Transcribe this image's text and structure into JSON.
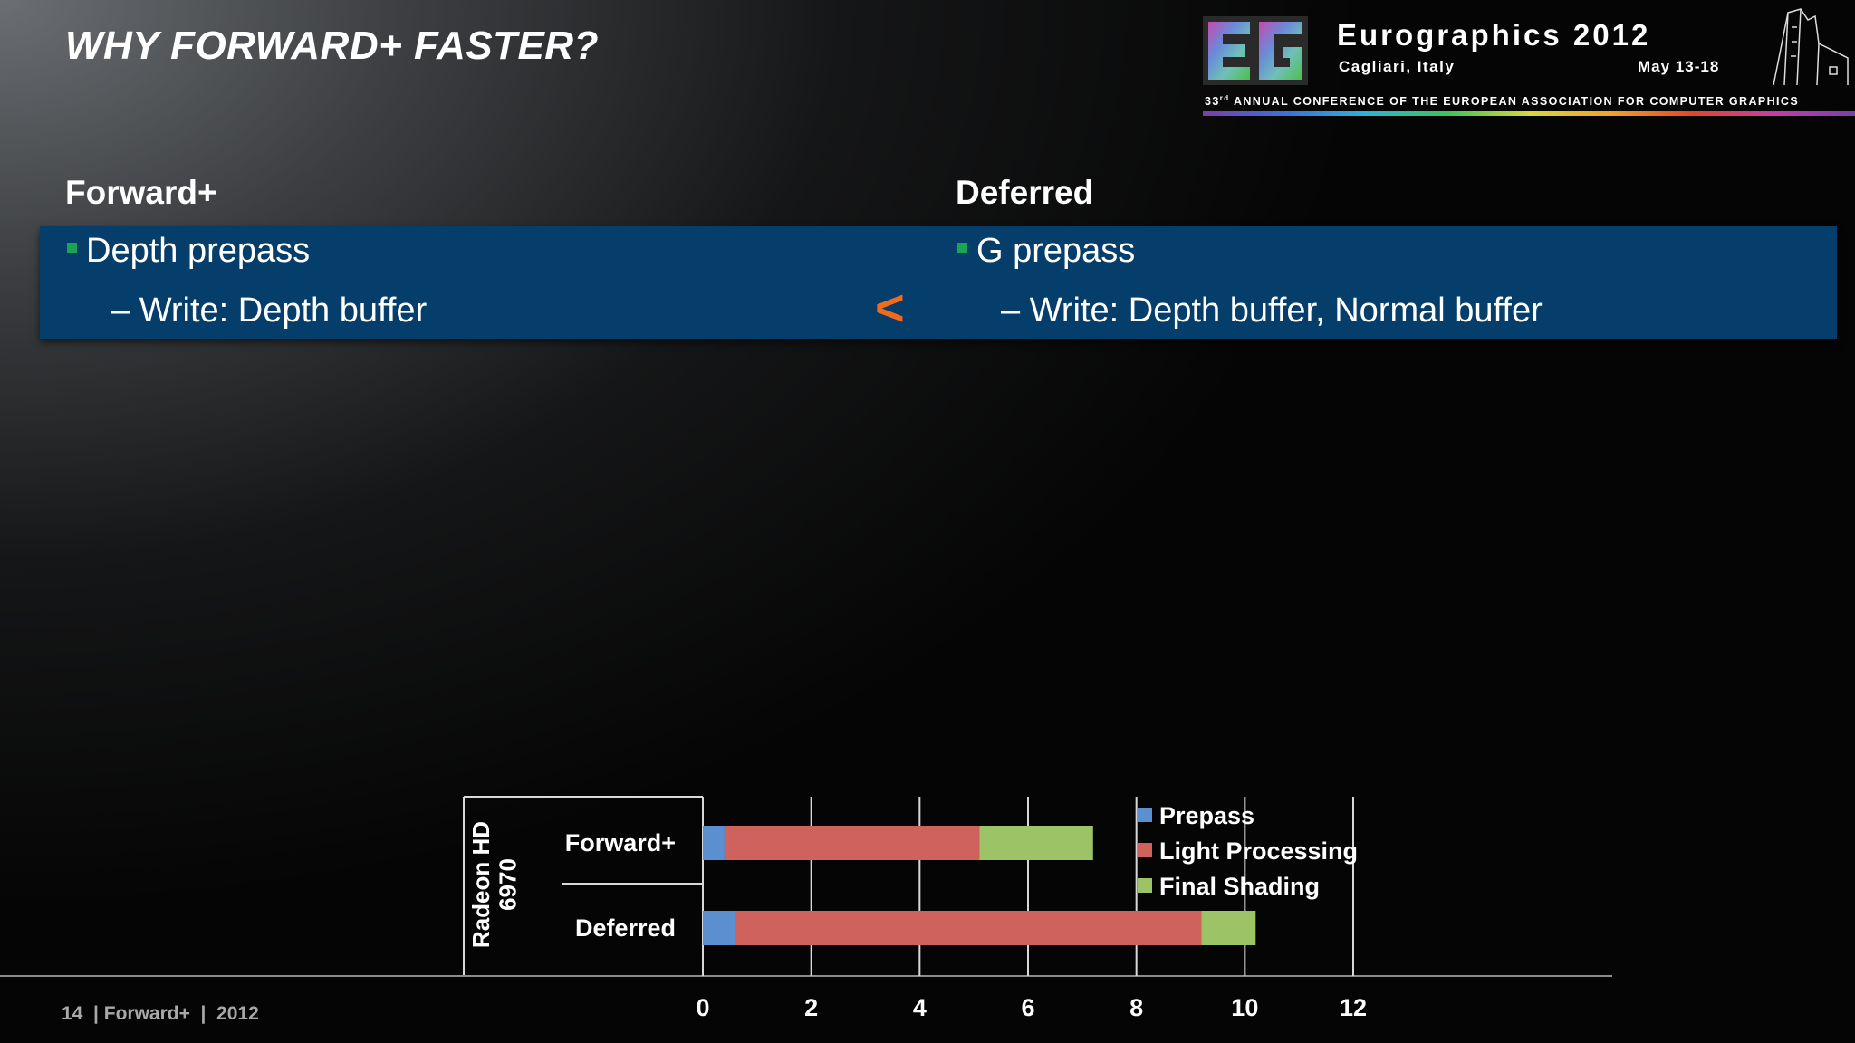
{
  "slide": {
    "title": "WHY FORWARD+ FASTER?",
    "footer": "14  | Forward+  |  2012"
  },
  "logo": {
    "name": "Eurographics 2012",
    "city": "Cagliari, Italy",
    "dates": "May 13-18",
    "ordinal": "33",
    "ordinal_suffix": "rd",
    "conference": "ANNUAL CONFERENCE OF THE EUROPEAN ASSOCIATION FOR COMPUTER GRAPHICS"
  },
  "left": {
    "heading": "Forward+",
    "bullet": "Depth prepass",
    "sub": "– Write: Depth buffer"
  },
  "right": {
    "heading": "Deferred",
    "bullet": "G prepass",
    "sub": "– Write: Depth buffer, Normal buffer"
  },
  "comparison_symbol": "<",
  "colors": {
    "band": "#053d6b",
    "bullet_square": "#19a553",
    "symbol": "#f26b1d"
  },
  "chart_data": {
    "type": "bar",
    "orientation": "horizontal",
    "stacked": true,
    "group_label": "Radeon HD 6970",
    "categories": [
      "Forward+",
      "Deferred"
    ],
    "series": [
      {
        "name": "Prepass",
        "color": "#5b8fd0",
        "values": [
          0.4,
          0.6
        ]
      },
      {
        "name": "Light Processing",
        "color": "#cf625c",
        "values": [
          4.7,
          8.6
        ]
      },
      {
        "name": "Final Shading",
        "color": "#9cc366",
        "values": [
          2.1,
          1.0
        ]
      }
    ],
    "xlim": [
      0,
      12
    ],
    "xticks": [
      0,
      2,
      4,
      6,
      8,
      10,
      12
    ],
    "grid": true,
    "legend_position": "top-right"
  }
}
